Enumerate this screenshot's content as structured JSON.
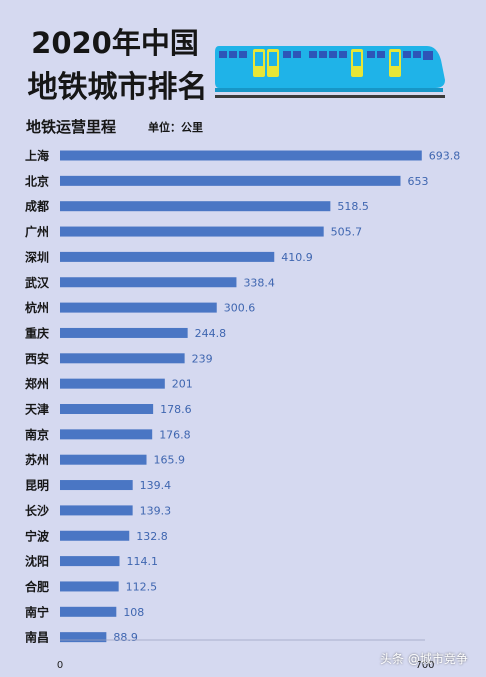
{
  "header": {
    "title_line1": "2020年中国",
    "title_line2": "地铁城市排名",
    "subtitle": "地铁运营里程",
    "unit": "单位：公里"
  },
  "colors": {
    "background": "#d5d9f0",
    "bar": "#4a76c4",
    "value_label": "#3f66b0",
    "train_body": "#1fb3e8",
    "train_window": "#2d55b8",
    "train_door": "#e8e637"
  },
  "watermark": "头条 @城市竞争",
  "chart_data": {
    "type": "bar",
    "orientation": "horizontal",
    "categories": [
      "上海",
      "北京",
      "成都",
      "广州",
      "深圳",
      "武汉",
      "杭州",
      "重庆",
      "西安",
      "郑州",
      "天津",
      "南京",
      "苏州",
      "昆明",
      "长沙",
      "宁波",
      "沈阳",
      "合肥",
      "南宁",
      "南昌"
    ],
    "values": [
      693.8,
      653,
      518.5,
      505.7,
      410.9,
      338.4,
      300.6,
      244.8,
      239,
      201,
      178.6,
      176.8,
      165.9,
      139.4,
      139.3,
      132.8,
      114.1,
      112.5,
      108,
      88.9
    ],
    "title": "地铁运营里程",
    "xlim": [
      0,
      700
    ],
    "x_ticks": [
      "0",
      "700"
    ],
    "grid": false,
    "legend": "none"
  }
}
